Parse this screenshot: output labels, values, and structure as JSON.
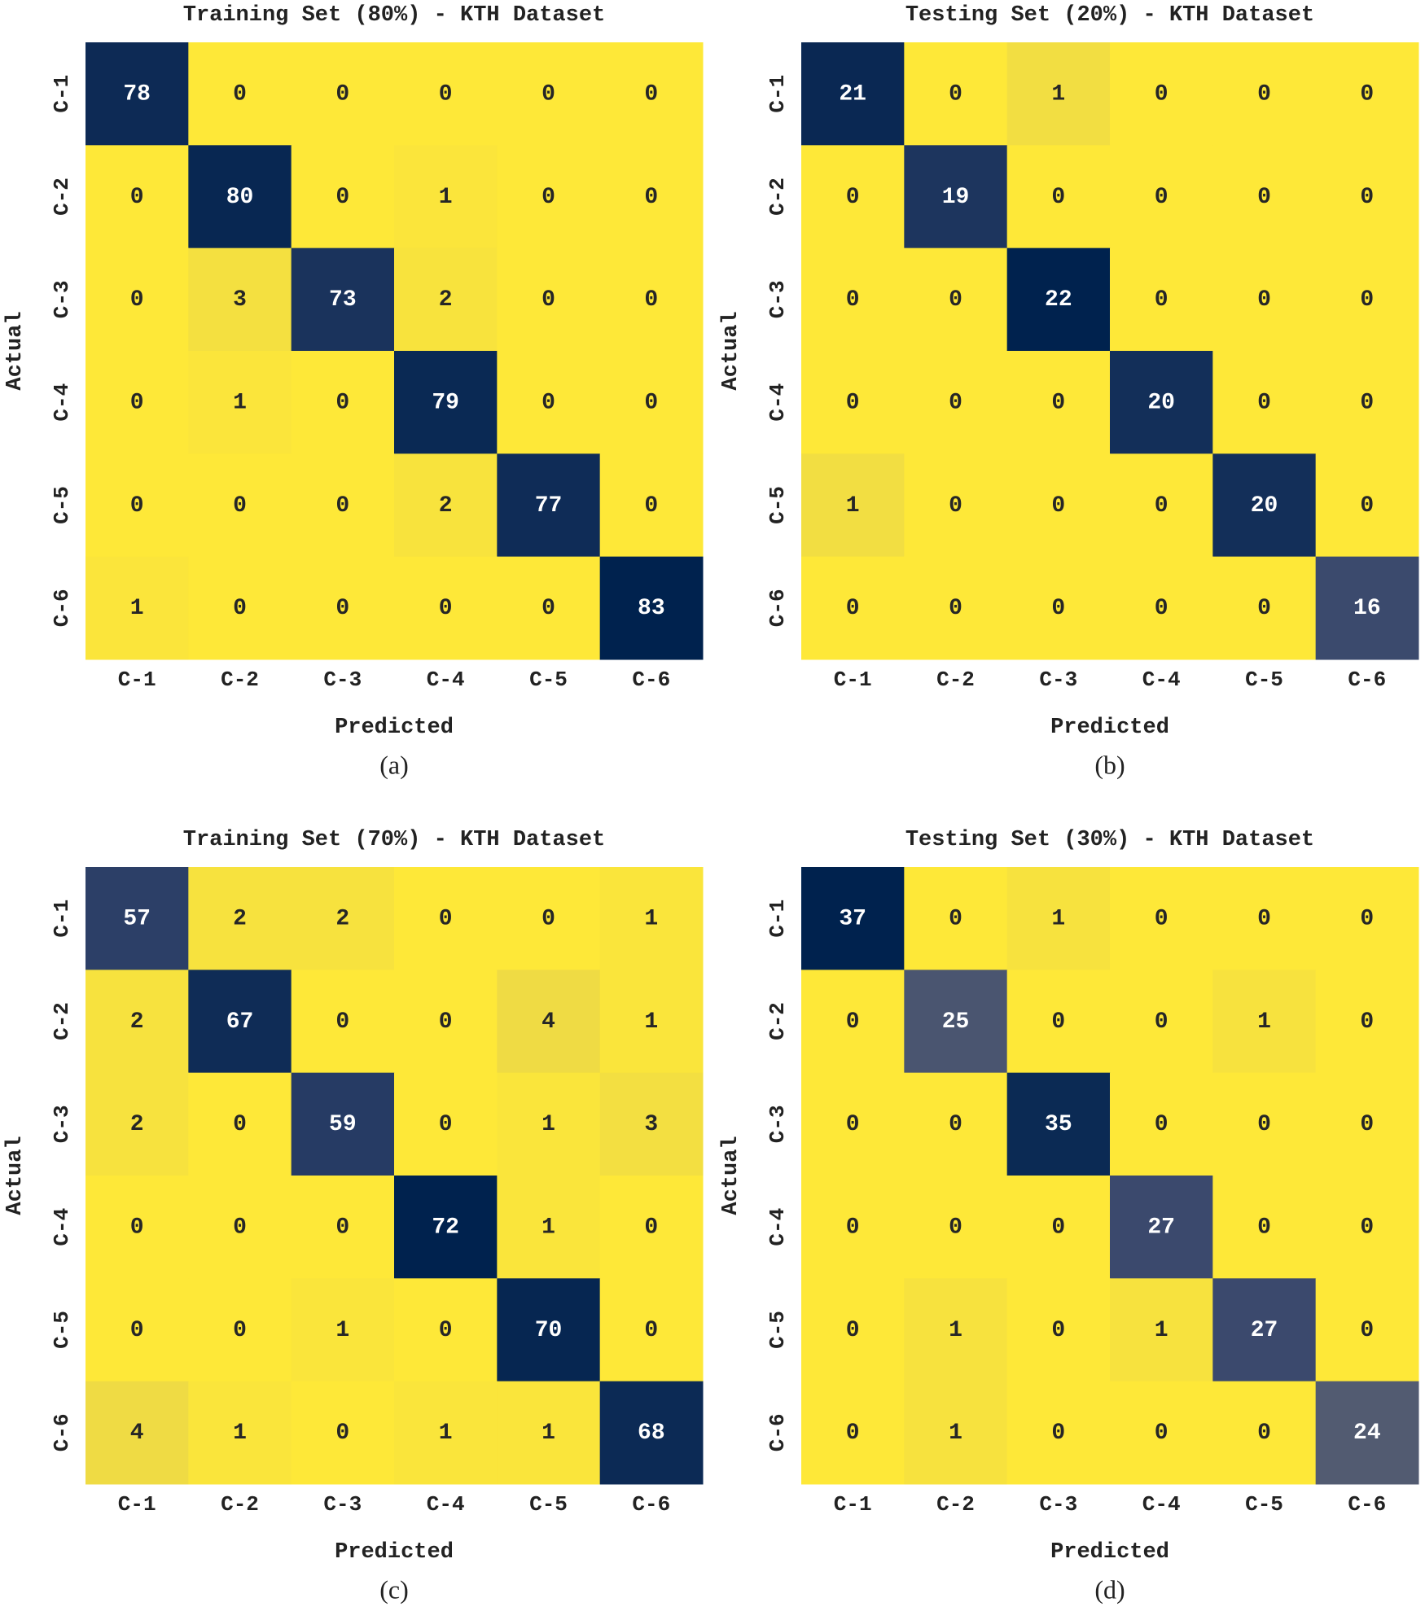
{
  "chart_data": [
    {
      "type": "heatmap",
      "title": "Training Set (80%) - KTH Dataset",
      "xlabel": "Predicted",
      "ylabel": "Actual",
      "caption": "(a)",
      "colormap": "cividis_r",
      "categories": [
        "C-1",
        "C-2",
        "C-3",
        "C-4",
        "C-5",
        "C-6"
      ],
      "z": [
        [
          78,
          0,
          0,
          0,
          0,
          0
        ],
        [
          0,
          80,
          0,
          1,
          0,
          0
        ],
        [
          0,
          3,
          73,
          2,
          0,
          0
        ],
        [
          0,
          1,
          0,
          79,
          0,
          0
        ],
        [
          0,
          0,
          0,
          2,
          77,
          0
        ],
        [
          1,
          0,
          0,
          0,
          0,
          83
        ]
      ]
    },
    {
      "type": "heatmap",
      "title": "Testing Set (20%) - KTH Dataset",
      "xlabel": "Predicted",
      "ylabel": "Actual",
      "caption": "(b)",
      "colormap": "cividis_r",
      "categories": [
        "C-1",
        "C-2",
        "C-3",
        "C-4",
        "C-5",
        "C-6"
      ],
      "z": [
        [
          21,
          0,
          1,
          0,
          0,
          0
        ],
        [
          0,
          19,
          0,
          0,
          0,
          0
        ],
        [
          0,
          0,
          22,
          0,
          0,
          0
        ],
        [
          0,
          0,
          0,
          20,
          0,
          0
        ],
        [
          1,
          0,
          0,
          0,
          20,
          0
        ],
        [
          0,
          0,
          0,
          0,
          0,
          16
        ]
      ]
    },
    {
      "type": "heatmap",
      "title": "Training Set (70%) - KTH Dataset",
      "xlabel": "Predicted",
      "ylabel": "Actual",
      "caption": "(c)",
      "colormap": "cividis_r",
      "categories": [
        "C-1",
        "C-2",
        "C-3",
        "C-4",
        "C-5",
        "C-6"
      ],
      "z": [
        [
          57,
          2,
          2,
          0,
          0,
          1
        ],
        [
          2,
          67,
          0,
          0,
          4,
          1
        ],
        [
          2,
          0,
          59,
          0,
          1,
          3
        ],
        [
          0,
          0,
          0,
          72,
          1,
          0
        ],
        [
          0,
          0,
          1,
          0,
          70,
          0
        ],
        [
          4,
          1,
          0,
          1,
          1,
          68
        ]
      ]
    },
    {
      "type": "heatmap",
      "title": "Testing Set (30%) - KTH Dataset",
      "xlabel": "Predicted",
      "ylabel": "Actual",
      "caption": "(d)",
      "colormap": "cividis_r",
      "categories": [
        "C-1",
        "C-2",
        "C-3",
        "C-4",
        "C-5",
        "C-6"
      ],
      "z": [
        [
          37,
          0,
          1,
          0,
          0,
          0
        ],
        [
          0,
          25,
          0,
          0,
          1,
          0
        ],
        [
          0,
          0,
          35,
          0,
          0,
          0
        ],
        [
          0,
          0,
          0,
          27,
          0,
          0
        ],
        [
          0,
          1,
          0,
          1,
          27,
          0
        ],
        [
          0,
          1,
          0,
          0,
          0,
          24
        ]
      ]
    }
  ]
}
